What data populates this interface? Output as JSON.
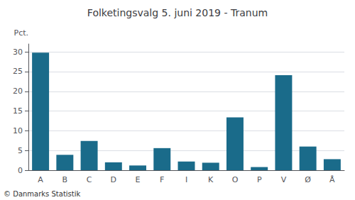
{
  "chart_data": {
    "type": "bar",
    "title": "Folketingsvalg 5. juni 2019 - Tranum",
    "ylabel": "Pct.",
    "footer": "© Danmarks Statistik",
    "categories": [
      "A",
      "B",
      "C",
      "D",
      "E",
      "F",
      "I",
      "K",
      "O",
      "P",
      "V",
      "Ø",
      "Å"
    ],
    "values": [
      29.8,
      3.9,
      7.4,
      2.0,
      1.2,
      5.6,
      2.2,
      1.9,
      13.4,
      0.8,
      24.1,
      6.0,
      2.8
    ],
    "color": "#1a6b8a",
    "ylim": [
      0,
      32
    ],
    "yticks": [
      0,
      5,
      10,
      15,
      20,
      25,
      30
    ],
    "grid": true
  }
}
